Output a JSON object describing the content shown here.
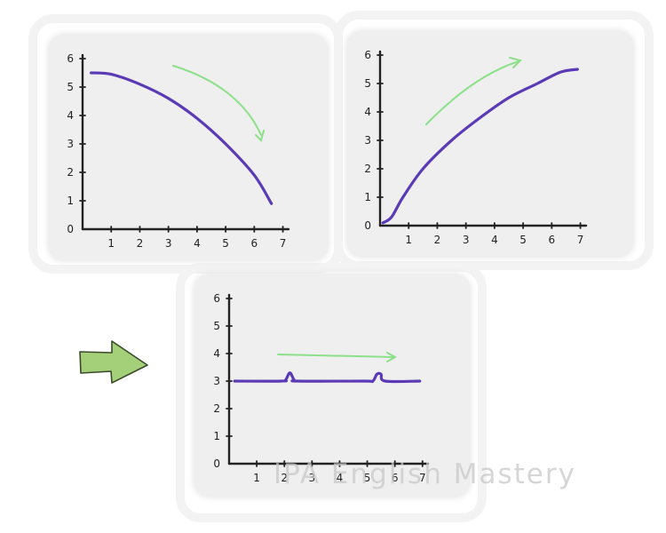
{
  "chart_data": [
    {
      "type": "line",
      "title": "",
      "xlabel": "",
      "ylabel": "",
      "x_ticks": [
        "1",
        "2",
        "3",
        "4",
        "5",
        "6",
        "7"
      ],
      "y_ticks": [
        "0",
        "1",
        "2",
        "3",
        "4",
        "5",
        "6"
      ],
      "xlim": [
        0,
        7.2
      ],
      "ylim": [
        0,
        6
      ],
      "series": [
        {
          "x": [
            0.3,
            1,
            2,
            3,
            4,
            5,
            6,
            6.6
          ],
          "y": [
            5.5,
            5.45,
            5.1,
            4.6,
            3.9,
            3.0,
            1.9,
            0.9
          ]
        }
      ],
      "trend_arrow": {
        "direction": "down",
        "color": "#8ce08a"
      },
      "line_color": "#5a3bb5"
    },
    {
      "type": "line",
      "title": "",
      "xlabel": "",
      "ylabel": "",
      "x_ticks": [
        "1",
        "2",
        "3",
        "4",
        "5",
        "6",
        "7"
      ],
      "y_ticks": [
        "0",
        "1",
        "2",
        "3",
        "4",
        "5",
        "6"
      ],
      "xlim": [
        0,
        7.2
      ],
      "ylim": [
        0,
        6
      ],
      "series": [
        {
          "x": [
            0.1,
            0.4,
            0.8,
            1.5,
            2.5,
            3.5,
            4.5,
            5.5,
            6.3,
            6.9
          ],
          "y": [
            0.1,
            0.3,
            1.0,
            2.0,
            3.0,
            3.8,
            4.5,
            5.0,
            5.4,
            5.5
          ]
        }
      ],
      "trend_arrow": {
        "direction": "up",
        "color": "#8ce08a"
      },
      "line_color": "#5a3bb5"
    },
    {
      "type": "line",
      "title": "",
      "xlabel": "",
      "ylabel": "",
      "x_ticks": [
        "1",
        "2",
        "3",
        "4",
        "5",
        "6",
        "7"
      ],
      "y_ticks": [
        "0",
        "1",
        "2",
        "3",
        "4",
        "5",
        "6"
      ],
      "xlim": [
        0,
        7.2
      ],
      "ylim": [
        0,
        6
      ],
      "series": [
        {
          "x": [
            0.2,
            1.9,
            2.05,
            2.2,
            2.35,
            2.5,
            4.9,
            5.2,
            5.35,
            5.5,
            5.65,
            6.9
          ],
          "y": [
            3,
            3,
            3.05,
            3.3,
            3.05,
            3,
            3,
            3,
            3.25,
            3.25,
            3,
            3
          ]
        }
      ],
      "trend_arrow": {
        "direction": "right",
        "color": "#8ce08a"
      },
      "line_color": "#5a3bb5"
    }
  ],
  "pointer_arrow": {
    "fill": "#a5d07a",
    "stroke": "#3a4a2a"
  },
  "watermark": "IPA English Mastery"
}
